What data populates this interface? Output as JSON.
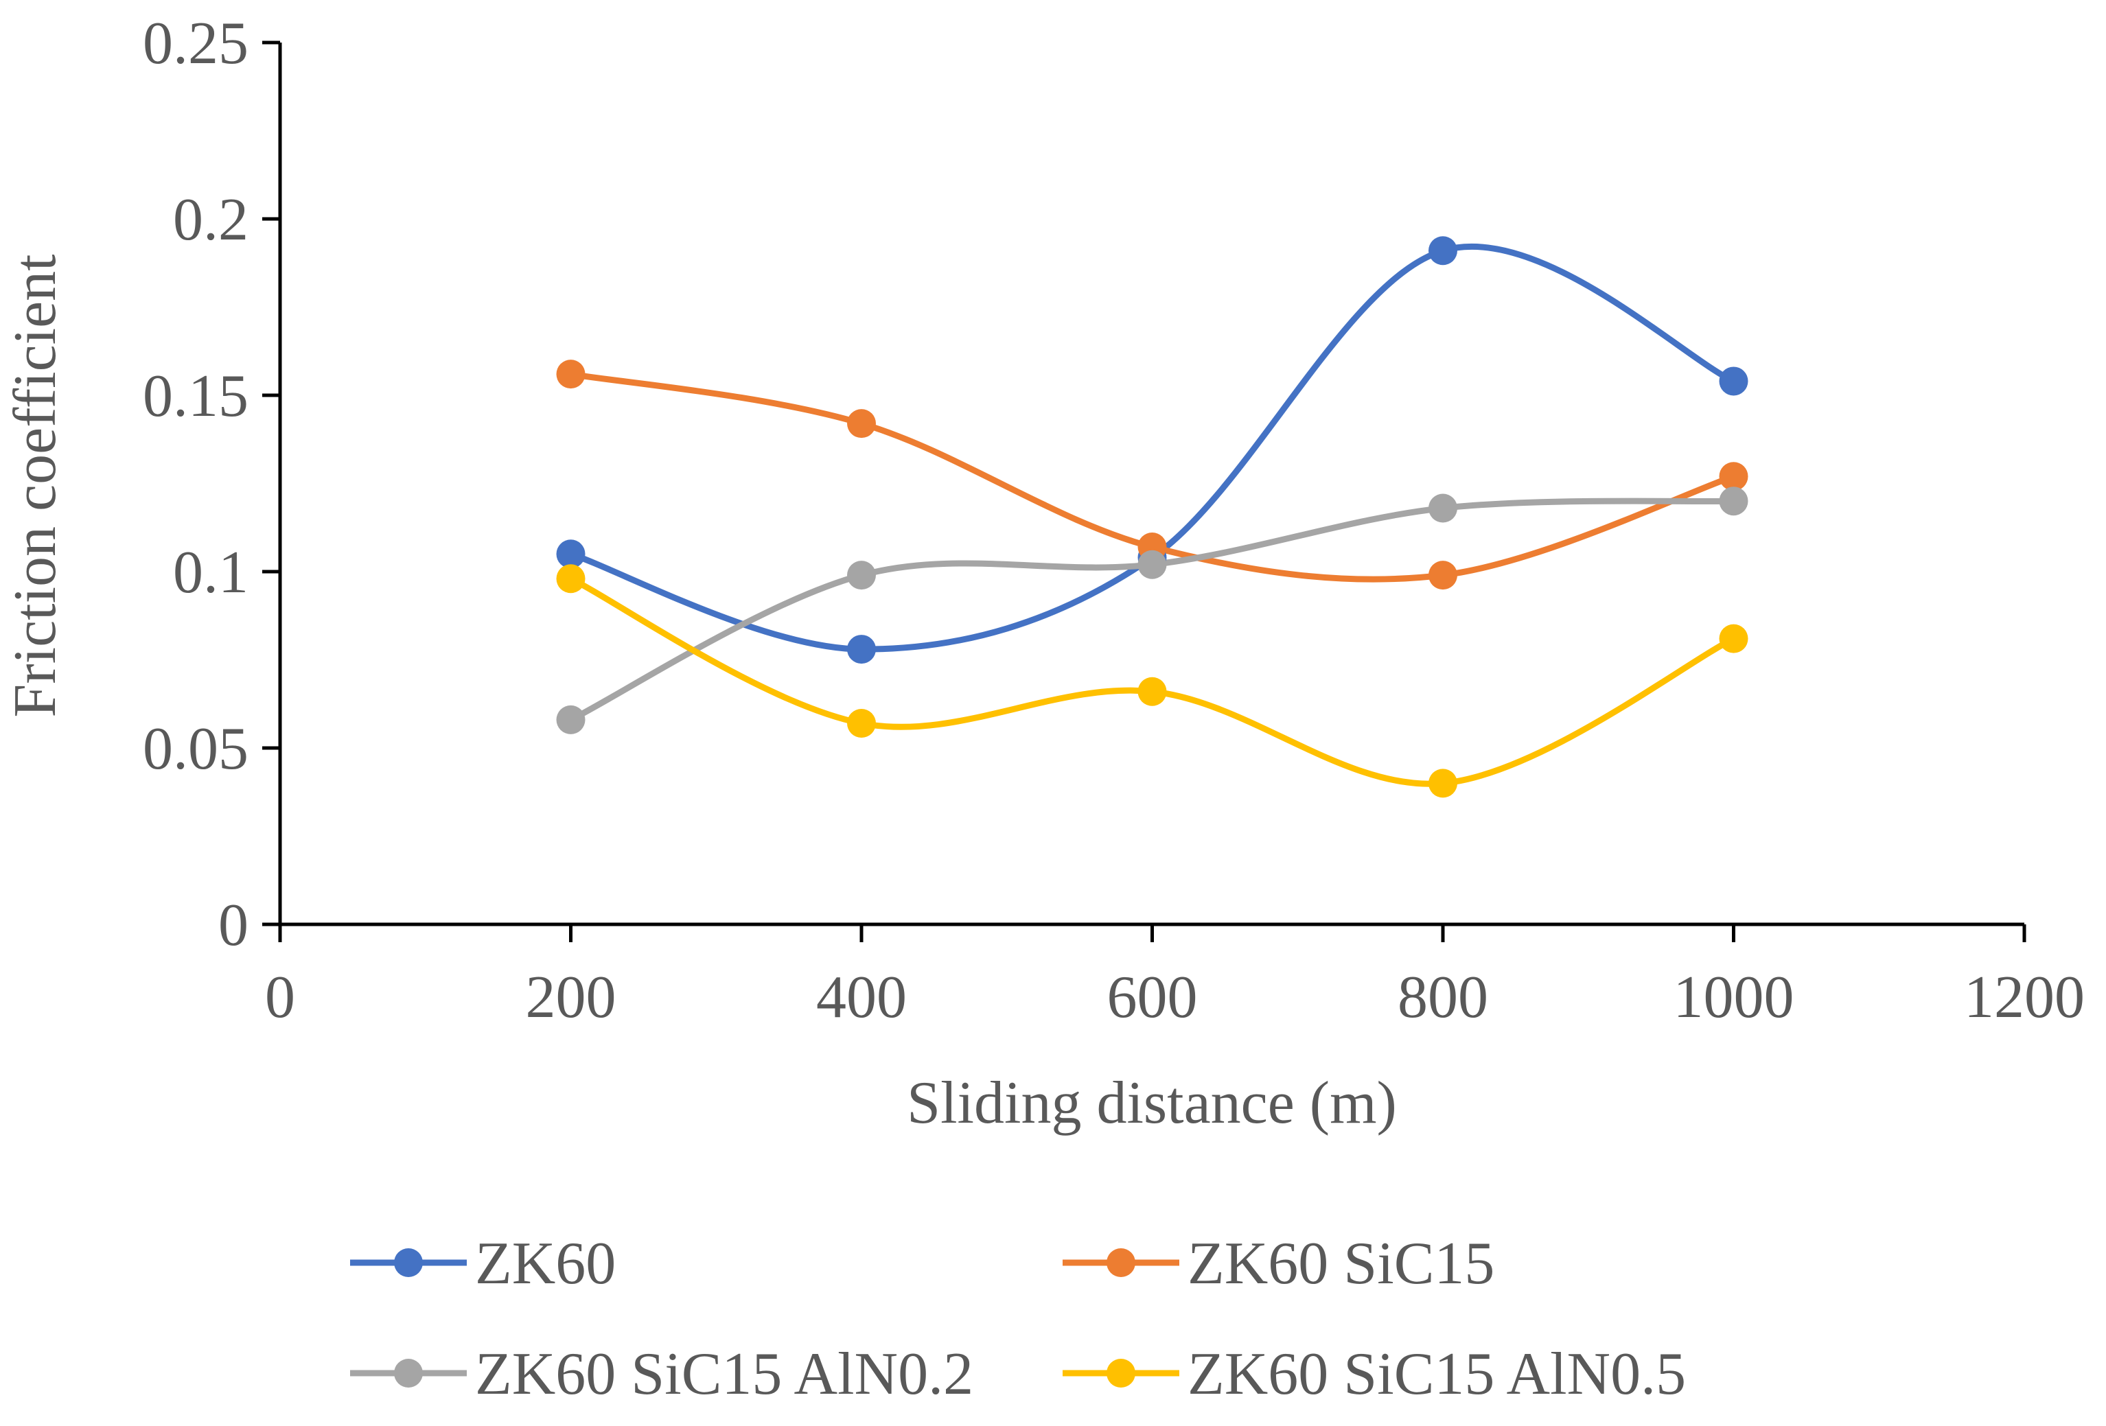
{
  "chart_data": {
    "type": "line",
    "smooth": true,
    "title": "",
    "xlabel": "Sliding distance (m)",
    "ylabel": "Friction coefficient",
    "xlim": [
      0,
      1200
    ],
    "ylim": [
      0,
      0.25
    ],
    "x_ticks": [
      "0",
      "200",
      "400",
      "600",
      "800",
      "1000",
      "1200"
    ],
    "y_ticks": [
      "0",
      "0.05",
      "0.1",
      "0.15",
      "0.2",
      "0.25"
    ],
    "x": [
      200,
      400,
      600,
      800,
      1000
    ],
    "series": [
      {
        "name": "ZK60",
        "color": "#4472C4",
        "values": [
          0.105,
          0.078,
          0.104,
          0.191,
          0.154
        ]
      },
      {
        "name": "ZK60 SiC15",
        "color": "#ED7D31",
        "values": [
          0.156,
          0.142,
          0.107,
          0.099,
          0.127
        ]
      },
      {
        "name": "ZK60 SiC15 AlN0.2",
        "color": "#A5A5A5",
        "values": [
          0.058,
          0.099,
          0.102,
          0.118,
          0.12
        ]
      },
      {
        "name": "ZK60 SiC15 AlN0.5",
        "color": "#FFC000",
        "values": [
          0.098,
          0.057,
          0.066,
          0.04,
          0.081
        ]
      }
    ],
    "grid": false,
    "legend": "bottom"
  }
}
